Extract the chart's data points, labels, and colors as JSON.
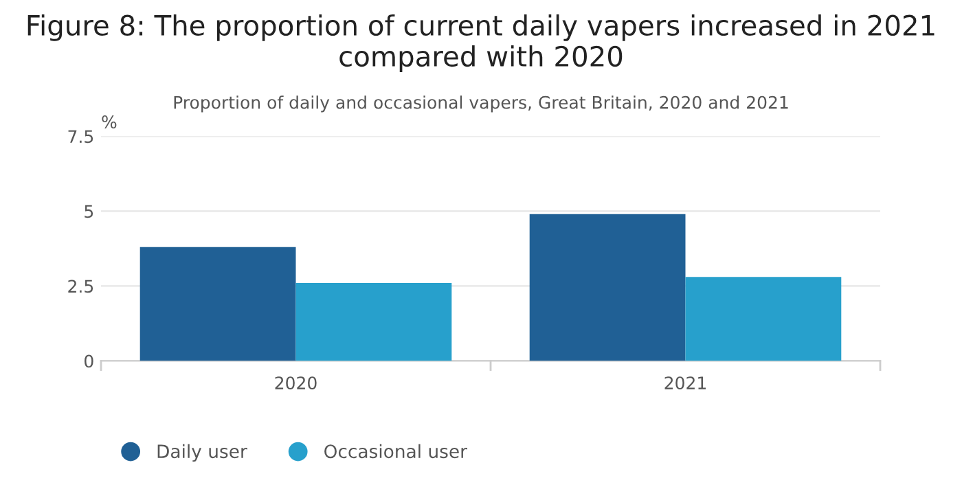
{
  "chart_data": {
    "type": "bar",
    "title": "Figure 8: The proportion of current daily vapers increased in 2021 compared with 2020",
    "subtitle": "Proportion of daily and occasional vapers, Great Britain, 2020 and 2021",
    "ylabel": "%",
    "categories": [
      "2020",
      "2021"
    ],
    "series": [
      {
        "name": "Daily user",
        "color": "#206095",
        "values": [
          3.8,
          4.9
        ]
      },
      {
        "name": "Occasional user",
        "color": "#27a0cc",
        "values": [
          2.6,
          2.8
        ]
      }
    ],
    "ylim": [
      0,
      7.5
    ],
    "yticks": [
      0,
      2.5,
      5,
      7.5
    ],
    "grid": "y",
    "legend": "bottom left"
  }
}
